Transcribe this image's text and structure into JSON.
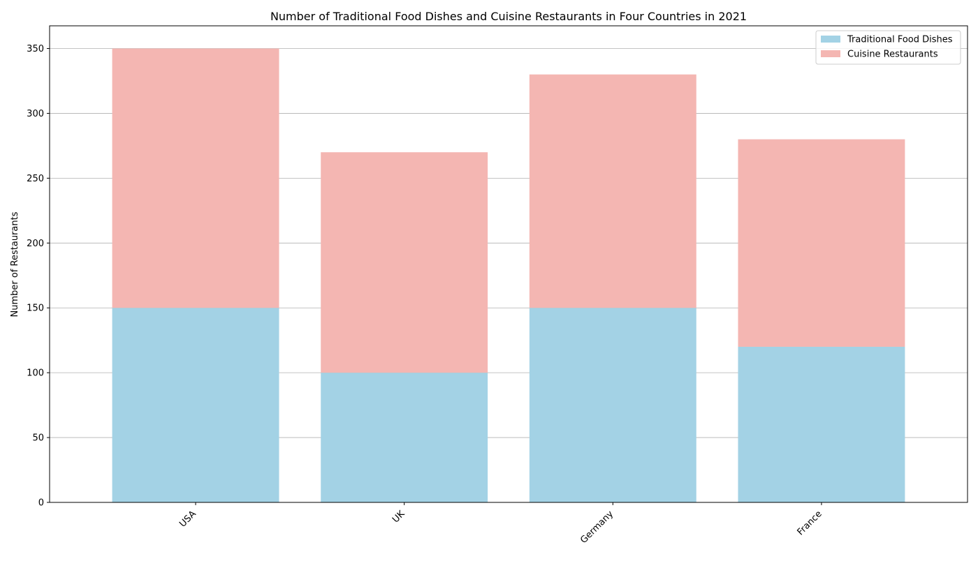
{
  "chart_data": {
    "type": "bar",
    "stacked": true,
    "title": "Number of Traditional Food Dishes and Cuisine Restaurants in Four Countries in 2021",
    "xlabel": "",
    "ylabel": "Number of Restaurants",
    "categories": [
      "USA",
      "UK",
      "Germany",
      "France"
    ],
    "series": [
      {
        "name": "Traditional Food Dishes",
        "values": [
          150,
          100,
          150,
          120
        ],
        "color": "#a3d2e5"
      },
      {
        "name": "Cuisine Restaurants",
        "values": [
          200,
          170,
          180,
          160
        ],
        "color": "#f4b6b2"
      }
    ],
    "ylim": [
      0,
      367.5
    ],
    "yticks": [
      0,
      50,
      100,
      150,
      200,
      250,
      300,
      350
    ],
    "grid": "y-axis",
    "legend_position": "top-right",
    "x_tick_rotation": "45 degrees"
  }
}
